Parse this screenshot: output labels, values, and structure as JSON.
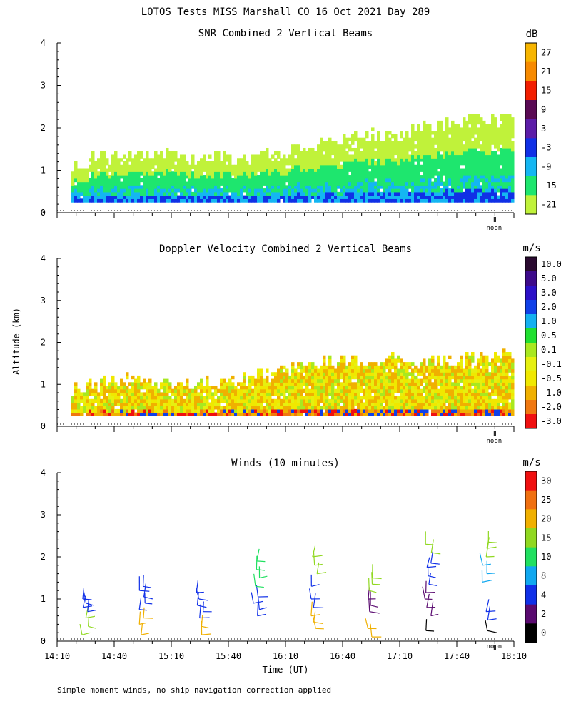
{
  "figure_title": "LOTOS Tests MISS Marshall CO  16 Oct 2021 Day 289",
  "y_axis_label": "Altitude (km)",
  "x_axis_label": "Time (UT)",
  "x_ticks": [
    "14:10",
    "14:40",
    "15:10",
    "15:40",
    "16:10",
    "16:40",
    "17:10",
    "17:40",
    "18:10"
  ],
  "noon_label": "noon",
  "footnote": "Simple moment winds, no ship navigation correction applied",
  "chart_data": [
    {
      "type": "heatmap",
      "title": "SNR Combined 2 Vertical Beams",
      "xlabel": "Time (UT)",
      "ylabel": "Altitude (km)",
      "x_range": [
        "14:10",
        "18:10"
      ],
      "ylim": [
        0,
        4
      ],
      "y_ticks": [
        "0",
        "1",
        "2",
        "3",
        "4"
      ],
      "colorbar": {
        "unit": "dB",
        "ticks": [
          "27",
          "21",
          "15",
          "9",
          "3",
          "-3",
          "-9",
          "-15",
          "-21"
        ],
        "colors": [
          "#f7b500",
          "#f78a00",
          "#f21e00",
          "#5a0a54",
          "#5c1da8",
          "#1030e6",
          "#14b6f2",
          "#1ee66e",
          "#c0f23a"
        ]
      },
      "echo_top_km": [
        0.9,
        1.3,
        1.4,
        1.3,
        1.3,
        1.2,
        1.4,
        1.6,
        1.8,
        1.8,
        2.0,
        2.2,
        2.2
      ]
    },
    {
      "type": "heatmap",
      "title": "Doppler Velocity Combined 2 Vertical Beams",
      "xlabel": "Time (UT)",
      "ylabel": "Altitude (km)",
      "x_range": [
        "14:10",
        "18:10"
      ],
      "ylim": [
        0,
        4
      ],
      "y_ticks": [
        "0",
        "1",
        "2",
        "3",
        "4"
      ],
      "colorbar": {
        "unit": "m/s",
        "ticks": [
          "10.0",
          "5.0",
          "3.0",
          "2.0",
          "1.0",
          "0.5",
          "0.1",
          "-0.1",
          "-0.5",
          "-1.0",
          "-2.0",
          "-3.0"
        ],
        "colors": [
          "#2a0a30",
          "#3d0a8a",
          "#2c10c8",
          "#1040e8",
          "#14b0f0",
          "#20e030",
          "#a8e820",
          "#e6f010",
          "#f0e800",
          "#f0b000",
          "#f07810",
          "#f01010"
        ]
      },
      "echo_top_km": [
        0.7,
        1.0,
        1.1,
        1.0,
        1.0,
        1.1,
        1.3,
        1.5,
        1.5,
        1.6,
        1.5,
        1.6,
        1.7
      ]
    },
    {
      "type": "scatter",
      "title": "Winds (10 minutes)",
      "xlabel": "Time (UT)",
      "ylabel": "Altitude (km)",
      "x_range": [
        "14:10",
        "18:10"
      ],
      "ylim": [
        0,
        4
      ],
      "y_ticks": [
        "0",
        "1",
        "2",
        "3",
        "4"
      ],
      "colorbar": {
        "unit": "m/s",
        "ticks": [
          "30",
          "25",
          "20",
          "15",
          "10",
          "8",
          "4",
          "2",
          "0"
        ],
        "colors": [
          "#f01010",
          "#f07010",
          "#f0b000",
          "#90d820",
          "#20e060",
          "#10a8f0",
          "#1030e8",
          "#5a0a70",
          "#000000"
        ]
      },
      "series": [
        {
          "time": "14:25",
          "barbs": [
            {
              "alt": 0.15,
              "speed": 15
            },
            {
              "alt": 0.35,
              "speed": 15
            },
            {
              "alt": 0.55,
              "speed": 15
            },
            {
              "alt": 0.7,
              "speed": 5
            },
            {
              "alt": 0.8,
              "speed": 5
            },
            {
              "alt": 0.9,
              "speed": 5
            },
            {
              "alt": 1.0,
              "speed": 4
            }
          ]
        },
        {
          "time": "14:55",
          "barbs": [
            {
              "alt": 0.15,
              "speed": 20
            },
            {
              "alt": 0.4,
              "speed": 20
            },
            {
              "alt": 0.55,
              "speed": 22
            },
            {
              "alt": 0.75,
              "speed": 4
            },
            {
              "alt": 0.9,
              "speed": 4
            },
            {
              "alt": 1.05,
              "speed": 4
            },
            {
              "alt": 1.2,
              "speed": 5
            },
            {
              "alt": 1.3,
              "speed": 5
            }
          ]
        },
        {
          "time": "15:25",
          "barbs": [
            {
              "alt": 0.15,
              "speed": 20
            },
            {
              "alt": 0.35,
              "speed": 20
            },
            {
              "alt": 0.55,
              "speed": 5
            },
            {
              "alt": 0.7,
              "speed": 5
            },
            {
              "alt": 0.85,
              "speed": 5
            },
            {
              "alt": 1.0,
              "speed": 5
            },
            {
              "alt": 1.15,
              "speed": 5
            }
          ]
        },
        {
          "time": "15:55",
          "barbs": [
            {
              "alt": 0.6,
              "speed": 5
            },
            {
              "alt": 0.75,
              "speed": 5
            },
            {
              "alt": 0.9,
              "speed": 4
            },
            {
              "alt": 1.05,
              "speed": 4
            },
            {
              "alt": 1.3,
              "speed": 10
            },
            {
              "alt": 1.5,
              "speed": 10
            },
            {
              "alt": 1.7,
              "speed": 10
            },
            {
              "alt": 1.9,
              "speed": 10
            }
          ]
        },
        {
          "time": "16:25",
          "barbs": [
            {
              "alt": 0.3,
              "speed": 22
            },
            {
              "alt": 0.45,
              "speed": 22
            },
            {
              "alt": 0.6,
              "speed": 22
            },
            {
              "alt": 0.8,
              "speed": 4
            },
            {
              "alt": 1.0,
              "speed": 4
            },
            {
              "alt": 1.3,
              "speed": 4
            },
            {
              "alt": 1.6,
              "speed": 18
            },
            {
              "alt": 1.8,
              "speed": 18
            },
            {
              "alt": 2.0,
              "speed": 18
            }
          ]
        },
        {
          "time": "16:55",
          "barbs": [
            {
              "alt": 0.1,
              "speed": 24
            },
            {
              "alt": 0.3,
              "speed": 24
            },
            {
              "alt": 0.7,
              "speed": 3
            },
            {
              "alt": 0.85,
              "speed": 3
            },
            {
              "alt": 1.0,
              "speed": 3
            },
            {
              "alt": 1.2,
              "speed": 16
            },
            {
              "alt": 1.35,
              "speed": 16
            },
            {
              "alt": 1.5,
              "speed": 16
            }
          ]
        },
        {
          "time": "17:25",
          "barbs": [
            {
              "alt": 0.25,
              "speed": 1
            },
            {
              "alt": 0.6,
              "speed": 3
            },
            {
              "alt": 0.8,
              "speed": 3
            },
            {
              "alt": 1.0,
              "speed": 3
            },
            {
              "alt": 1.15,
              "speed": 3
            },
            {
              "alt": 1.35,
              "speed": 7
            },
            {
              "alt": 1.55,
              "speed": 7
            },
            {
              "alt": 1.75,
              "speed": 7
            },
            {
              "alt": 1.85,
              "speed": 7
            },
            {
              "alt": 2.1,
              "speed": 16
            },
            {
              "alt": 2.3,
              "speed": 16
            }
          ]
        },
        {
          "time": "17:55",
          "barbs": [
            {
              "alt": 0.25,
              "speed": 1
            },
            {
              "alt": 0.5,
              "speed": 6
            },
            {
              "alt": 0.7,
              "speed": 6
            },
            {
              "alt": 1.4,
              "speed": 9
            },
            {
              "alt": 1.6,
              "speed": 9
            },
            {
              "alt": 1.8,
              "speed": 9
            },
            {
              "alt": 2.0,
              "speed": 16
            },
            {
              "alt": 2.2,
              "speed": 16
            },
            {
              "alt": 2.35,
              "speed": 16
            }
          ]
        }
      ]
    }
  ]
}
